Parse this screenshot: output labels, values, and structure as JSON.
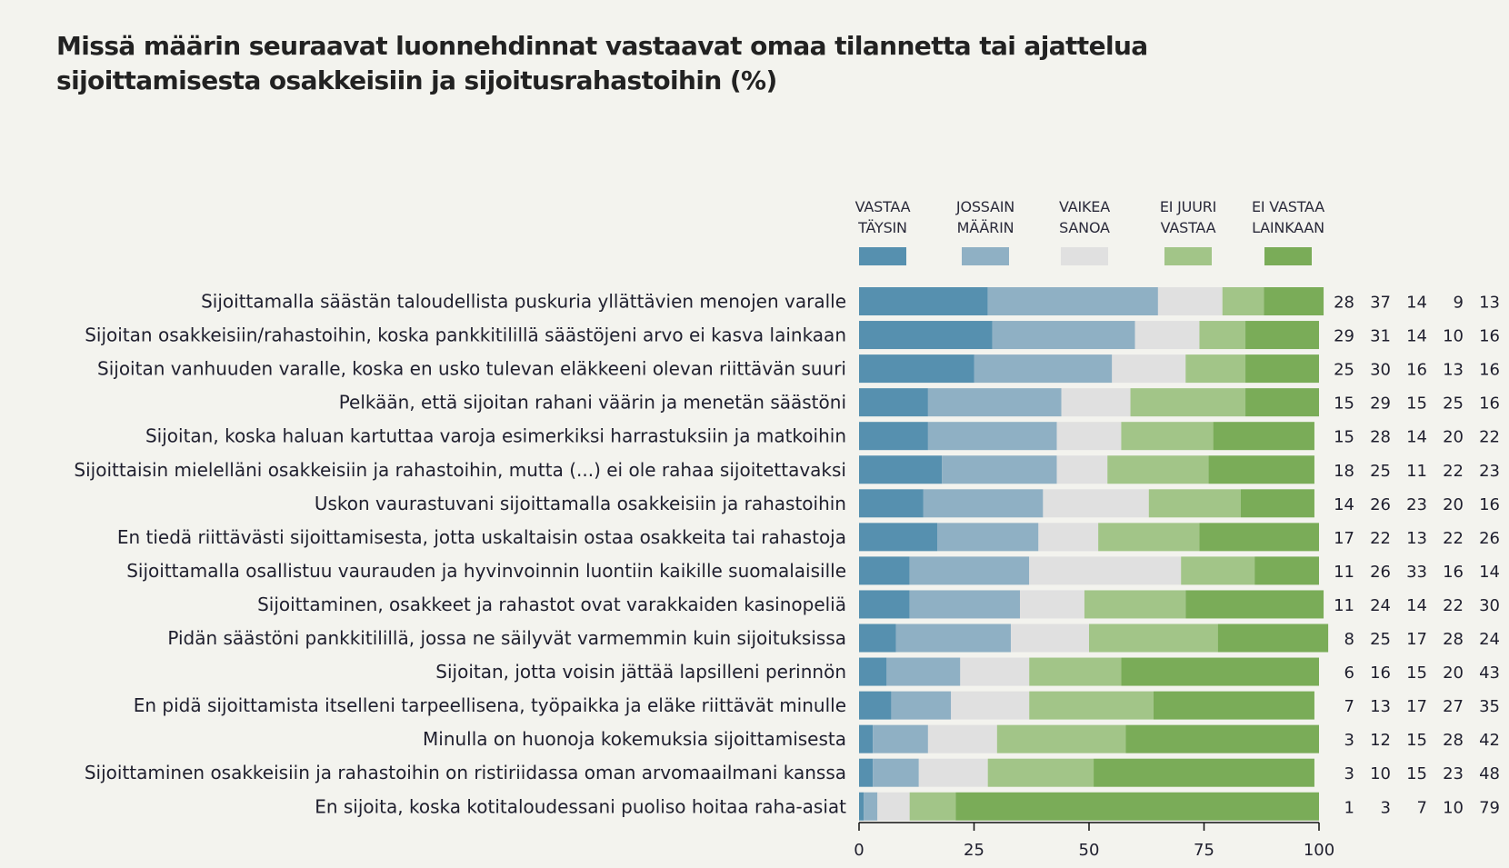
{
  "chart_data": {
    "type": "bar",
    "orientation": "horizontal",
    "stacked": true,
    "title": "Missä määrin seuraavat luonnehdinnat vastaavat omaa tilannetta tai ajattelua sijoittamisesta osakkeisiin ja sijoitusrahastoihin (%)",
    "title_lines": [
      "Missä määrin seuraavat luonnehdinnat vastaavat omaa tilannetta tai ajattelua",
      "sijoittamisesta osakkeisiin ja sijoitusrahastoihin (%)"
    ],
    "xlabel": "",
    "ylabel": "",
    "xlim": [
      0,
      100
    ],
    "xticks": [
      0,
      25,
      50,
      75,
      100
    ],
    "grid": false,
    "legend_position": "top",
    "series": [
      {
        "name": "VASTAA TÄYSIN",
        "label_lines": [
          "VASTAA",
          "TÄYSIN"
        ],
        "color": "#5690AF",
        "values": [
          28,
          29,
          25,
          15,
          15,
          18,
          14,
          17,
          11,
          11,
          8,
          6,
          7,
          3,
          3,
          1
        ]
      },
      {
        "name": "JOSSAIN MÄÄRIN",
        "label_lines": [
          "JOSSAIN",
          "MÄÄRIN"
        ],
        "color": "#8FB0C4",
        "values": [
          37,
          31,
          30,
          29,
          28,
          25,
          26,
          22,
          26,
          24,
          25,
          16,
          13,
          12,
          10,
          3
        ]
      },
      {
        "name": "VAIKEA SANOA",
        "label_lines": [
          "VAIKEA",
          "SANOA"
        ],
        "color": "#E0E0E0",
        "values": [
          14,
          14,
          16,
          15,
          14,
          11,
          23,
          13,
          33,
          14,
          17,
          15,
          17,
          15,
          15,
          7
        ]
      },
      {
        "name": "EI JUURI VASTAA",
        "label_lines": [
          "EI JUURI",
          "VASTAA"
        ],
        "color": "#A2C588",
        "values": [
          9,
          10,
          13,
          25,
          20,
          22,
          20,
          22,
          16,
          22,
          28,
          20,
          27,
          28,
          23,
          10
        ]
      },
      {
        "name": "EI VASTAA LAINKAAN",
        "label_lines": [
          "EI VASTAA",
          "LAINKAAN"
        ],
        "color": "#7AAC58",
        "values": [
          13,
          16,
          16,
          16,
          22,
          23,
          16,
          26,
          14,
          30,
          24,
          43,
          35,
          42,
          48,
          79
        ]
      }
    ],
    "categories": [
      "Sijoittamalla säästän taloudellista puskuria yllättävien menojen varalle",
      "Sijoitan osakkeisiin/rahastoihin, koska pankkitilillä säästöjeni arvo ei kasva lainkaan",
      "Sijoitan vanhuuden varalle, koska en usko tulevan eläkkeeni olevan riittävän suuri",
      "Pelkään, että sijoitan rahani väärin ja menetän säästöni",
      "Sijoitan, koska haluan kartuttaa varoja esimerkiksi harrastuksiin ja matkoihin",
      "Sijoittaisin mielelläni osakkeisiin ja rahastoihin, mutta (...) ei ole rahaa sijoitettavaksi",
      "Uskon vaurastuvani sijoittamalla osakkeisiin ja rahastoihin",
      "En tiedä riittävästi sijoittamisesta, jotta uskaltaisin ostaa osakkeita tai rahastoja",
      "Sijoittamalla osallistuu vaurauden ja hyvinvoinnin luontiin kaikille suomalaisille",
      "Sijoittaminen, osakkeet ja rahastot ovat varakkaiden kasinopeliä",
      "Pidän säästöni pankkitilillä, jossa ne säilyvät varmemmin kuin sijoituksissa",
      "Sijoitan, jotta voisin jättää lapsilleni perinnön",
      "En pidä sijoittamista itselleni tarpeellisena, työpaikka ja eläke riittävät minulle",
      "Minulla on huonoja kokemuksia sijoittamisesta",
      "Sijoittaminen osakkeisiin ja rahastoihin on ristiriidassa oman arvomaailmani kanssa",
      "En sijoita, koska kotitaloudessani puoliso hoitaa raha-asiat"
    ]
  }
}
